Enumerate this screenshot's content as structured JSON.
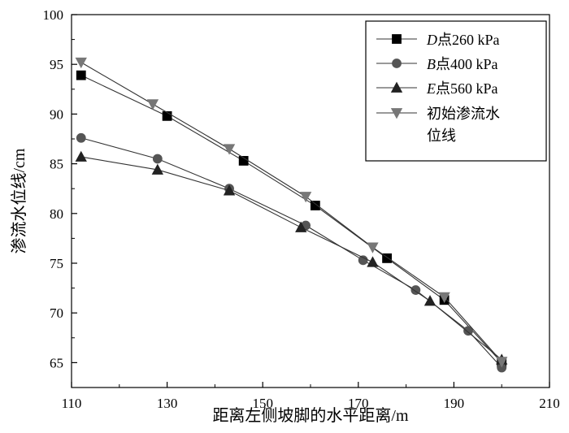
{
  "chart_data": {
    "type": "line",
    "title": "",
    "xlabel": "距离左侧坡脚的水平距离/m",
    "ylabel": "渗流水位线/cm",
    "xlim": [
      110,
      210
    ],
    "ylim": [
      62.5,
      100
    ],
    "xticks": [
      110,
      130,
      150,
      170,
      190,
      210
    ],
    "yticks": [
      65,
      70,
      75,
      80,
      85,
      90,
      95,
      100
    ],
    "grid": false,
    "legend_position": "top-right",
    "series": [
      {
        "name": "D点260 kPa",
        "name_italic": "D",
        "name_rest": "点260 kPa",
        "marker": "square",
        "color": "#000000",
        "x": [
          112,
          130,
          146,
          161,
          176,
          188,
          200
        ],
        "y": [
          93.9,
          89.8,
          85.3,
          80.8,
          75.5,
          71.3,
          65.0
        ]
      },
      {
        "name": "B点400 kPa",
        "name_italic": "B",
        "name_rest": "点400 kPa",
        "marker": "circle",
        "color": "#555555",
        "x": [
          112,
          128,
          143,
          159,
          171,
          182,
          193,
          200
        ],
        "y": [
          87.6,
          85.5,
          82.5,
          78.8,
          75.3,
          72.3,
          68.2,
          64.5
        ]
      },
      {
        "name": "E点560 kPa",
        "name_italic": "E",
        "name_rest": "点560 kPa",
        "marker": "triangle-up",
        "color": "#222222",
        "x": [
          112,
          128,
          143,
          158,
          173,
          185,
          200
        ],
        "y": [
          85.7,
          84.4,
          82.3,
          78.6,
          75.1,
          71.2,
          65.3
        ]
      },
      {
        "name": "初始渗流水位线",
        "name_line1": "初始渗流水",
        "name_line2": "位线",
        "marker": "triangle-down",
        "color": "#777777",
        "x": [
          112,
          127,
          143,
          159,
          173,
          188,
          200
        ],
        "y": [
          95.2,
          91.0,
          86.5,
          81.7,
          76.6,
          71.6,
          65.1
        ]
      }
    ]
  }
}
